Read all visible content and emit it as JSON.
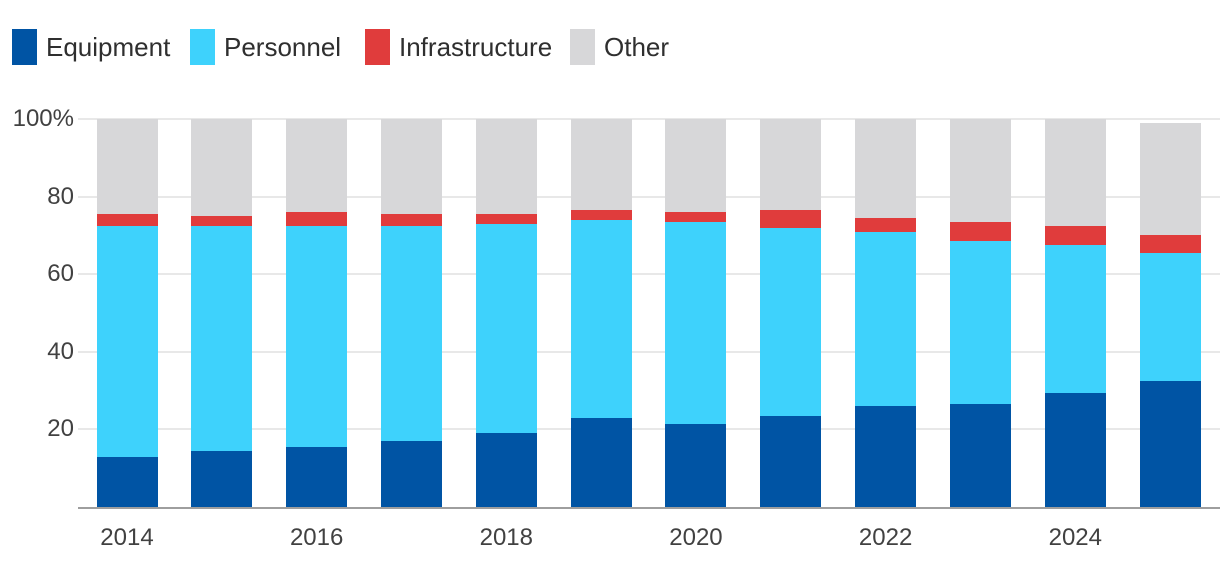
{
  "legend": {
    "items": [
      {
        "label": "Equipment",
        "color": "#0054a4"
      },
      {
        "label": "Personnel",
        "color": "#3ed2fc"
      },
      {
        "label": "Infrastructure",
        "color": "#e03c3c"
      },
      {
        "label": "Other",
        "color": "#d7d7d9"
      }
    ]
  },
  "chart_data": {
    "type": "bar",
    "stacked": true,
    "percent_stacked": true,
    "title": "",
    "xlabel": "",
    "ylabel": "",
    "ylim": [
      0,
      100
    ],
    "grid": true,
    "legend_position": "top-left",
    "categories": [
      "2014",
      "2015",
      "2016",
      "2017",
      "2018",
      "2019",
      "2020",
      "2021",
      "2022",
      "2023",
      "2024",
      "2025"
    ],
    "x_axis_labels_shown": [
      "2014",
      "2016",
      "2018",
      "2020",
      "2022",
      "2024"
    ],
    "y_ticks": [
      {
        "value": 20,
        "label": "20"
      },
      {
        "value": 40,
        "label": "40"
      },
      {
        "value": 60,
        "label": "60"
      },
      {
        "value": 80,
        "label": "80"
      },
      {
        "value": 100,
        "label": "100%"
      }
    ],
    "series": [
      {
        "name": "Equipment",
        "color": "#0054a4",
        "values": [
          13,
          14.5,
          15.5,
          17,
          19,
          23,
          21.5,
          23.5,
          26,
          26.5,
          29.5,
          32.5
        ]
      },
      {
        "name": "Personnel",
        "color": "#3ed2fc",
        "values": [
          59.5,
          58,
          57,
          55.5,
          54,
          51,
          52,
          48.5,
          45,
          42,
          38,
          33
        ]
      },
      {
        "name": "Infrastructure",
        "color": "#e03c3c",
        "values": [
          3,
          2.5,
          3.5,
          3,
          2.5,
          2.5,
          2.5,
          4.5,
          3.5,
          5,
          5,
          4.5
        ]
      },
      {
        "name": "Other",
        "color": "#d7d7d9",
        "values": [
          24.5,
          25,
          24,
          24.5,
          24.5,
          23.5,
          24,
          23.5,
          25.5,
          26.5,
          27.5,
          29
        ]
      }
    ],
    "bar_totals": [
      100,
      100,
      100,
      100,
      100,
      100,
      100,
      100,
      100,
      100,
      100,
      99
    ]
  }
}
